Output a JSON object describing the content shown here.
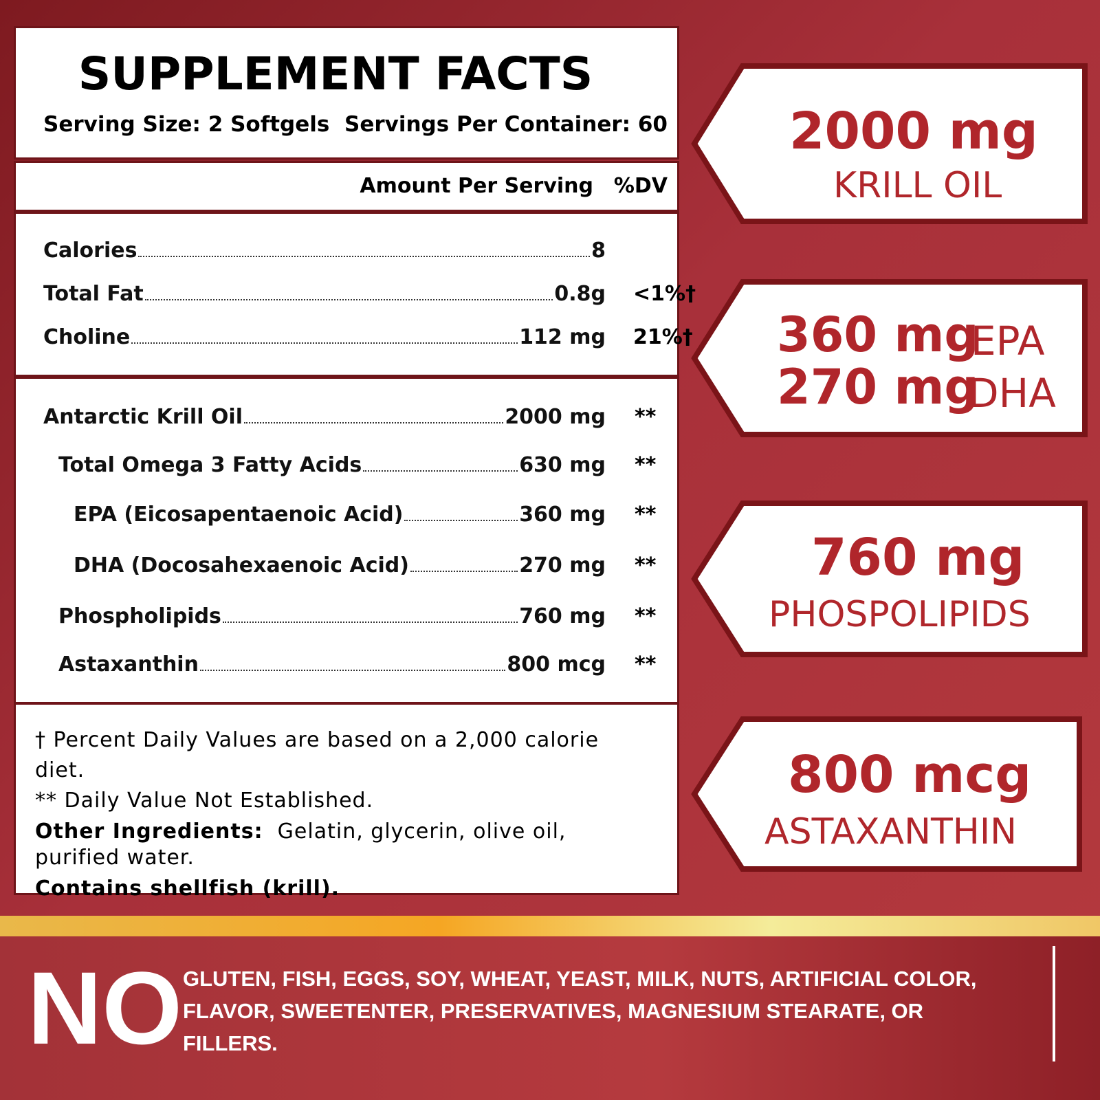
{
  "facts": {
    "title": "SUPPLEMENT FACTS",
    "serving_size": "Serving Size: 2 Softgels",
    "servings_per_container": "Servings Per Container: 60",
    "header": [
      "Amount Per Serving",
      "%DV"
    ],
    "nutrients": [
      {
        "name": "Calories",
        "amount": "8"
      },
      {
        "name": "Total Fat",
        "amount": "0.8g",
        "dv": "<1%†"
      },
      {
        "name": "Choline",
        "amount": "112 mg",
        "dv": "21%†"
      }
    ],
    "ingredients": [
      {
        "name": "Antarctic Krill Oil",
        "amount": "2000 mg",
        "dv": "**"
      },
      {
        "name": "Total Omega 3 Fatty Acids",
        "amount": "630 mg",
        "dv": "**"
      },
      {
        "name": "EPA (Eicosapentaenoic Acid)",
        "amount": "360 mg",
        "dv": "**"
      },
      {
        "name": "DHA (Docosahexaenoic Acid)",
        "amount": "270 mg",
        "dv": "**"
      },
      {
        "name": "Phospholipids",
        "amount": "760 mg",
        "dv": "**"
      },
      {
        "name": "Astaxanthin",
        "amount": "800 mcg",
        "dv": "**"
      }
    ],
    "footnotes": [
      "† Percent Daily Values are based on a 2,000 calorie diet.",
      "** Daily Value Not Established."
    ],
    "other_ingredients": {
      "label": "Other Ingredients:",
      "text": "Gelatin, glycerin, olive oil, purified water."
    },
    "allergen": "Contains shellfish (krill)."
  },
  "callouts": [
    {
      "items": [
        {
          "amount": "2000 mg",
          "label": "KRILL OIL"
        }
      ]
    },
    {
      "items": [
        {
          "amount": "360 mg",
          "label": "EPA"
        },
        {
          "amount": "270 mg",
          "label": "DHA"
        }
      ]
    },
    {
      "items": [
        {
          "amount": "760 mg",
          "label": "PHOSPOLIPIDS"
        }
      ]
    },
    {
      "items": [
        {
          "amount": "800 mcg",
          "label": "ASTAXANTHIN"
        }
      ]
    }
  ],
  "banner": {
    "no": "NO",
    "text": "GLUTEN, FISH, EGGS, SOY, WHEAT, YEAST, MILK, NUTS, ARTIFICIAL COLOR, FLAVOR, SWEETENTER, PRESERVATIVES, MAGNESIUM STEARATE, OR FILLERS."
  }
}
